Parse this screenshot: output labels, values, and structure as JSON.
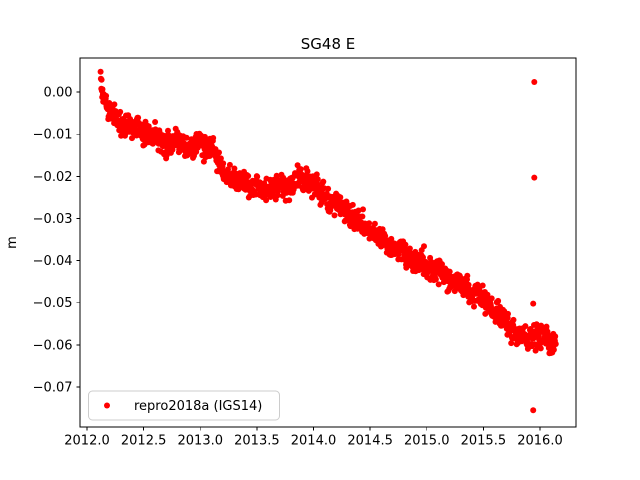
{
  "window": {
    "title": "SG48 E"
  },
  "chart_data": {
    "type": "scatter",
    "title": "SG48 E",
    "xlabel": "",
    "ylabel": "m",
    "grid": false,
    "xlim": [
      2011.938,
      2016.318
    ],
    "ylim": [
      -0.0795,
      0.0081
    ],
    "xticks": {
      "values": [
        2012.0,
        2012.5,
        2013.0,
        2013.5,
        2014.0,
        2014.5,
        2015.0,
        2015.5,
        2016.0
      ],
      "labels": [
        "2012.0",
        "2012.5",
        "2013.0",
        "2013.5",
        "2014.0",
        "2014.5",
        "2015.0",
        "2015.5",
        "2016.0"
      ]
    },
    "yticks": {
      "values": [
        0.0,
        -0.01,
        -0.02,
        -0.03,
        -0.04,
        -0.05,
        -0.06,
        -0.07
      ],
      "labels": [
        "0.00",
        "−0.01",
        "−0.02",
        "−0.03",
        "−0.04",
        "−0.05",
        "−0.06",
        "−0.07"
      ]
    },
    "legend": {
      "label": "repro2018a (IGS14)",
      "position": "lower left",
      "border_color": "#cccccc",
      "background": "#ffffff"
    },
    "marker": {
      "shape": "circle",
      "color": "#ff0000",
      "radius_px": 3
    },
    "axis_color": "#000000",
    "background_color": "#ffffff",
    "series": [
      {
        "name": "repro2018a (IGS14)",
        "color": "#ff0000",
        "t_start": 2012.12,
        "t_end": 2016.14,
        "n_points": 1420,
        "noise_sd_m": 0.0013,
        "trend": [
          [
            2012.12,
            0.0042
          ],
          [
            2012.135,
            0.0008
          ],
          [
            2012.165,
            -0.0028
          ],
          [
            2012.22,
            -0.0052
          ],
          [
            2012.3,
            -0.007
          ],
          [
            2012.42,
            -0.0086
          ],
          [
            2012.55,
            -0.0105
          ],
          [
            2012.72,
            -0.0116
          ],
          [
            2012.88,
            -0.013
          ],
          [
            2013.0,
            -0.0126
          ],
          [
            2013.08,
            -0.0122
          ],
          [
            2013.17,
            -0.0168
          ],
          [
            2013.28,
            -0.0205
          ],
          [
            2013.4,
            -0.022
          ],
          [
            2013.55,
            -0.0228
          ],
          [
            2013.7,
            -0.0226
          ],
          [
            2013.85,
            -0.0218
          ],
          [
            2013.97,
            -0.0215
          ],
          [
            2014.1,
            -0.0245
          ],
          [
            2014.25,
            -0.028
          ],
          [
            2014.4,
            -0.0308
          ],
          [
            2014.55,
            -0.0336
          ],
          [
            2014.7,
            -0.0372
          ],
          [
            2014.85,
            -0.039
          ],
          [
            2015.0,
            -0.041
          ],
          [
            2015.15,
            -0.0438
          ],
          [
            2015.3,
            -0.0458
          ],
          [
            2015.45,
            -0.0476
          ],
          [
            2015.6,
            -0.0518
          ],
          [
            2015.72,
            -0.0553
          ],
          [
            2015.8,
            -0.0576
          ],
          [
            2015.88,
            -0.0588
          ],
          [
            2015.95,
            -0.0574
          ],
          [
            2016.02,
            -0.0584
          ],
          [
            2016.09,
            -0.0597
          ],
          [
            2016.14,
            -0.0592
          ]
        ],
        "outliers": [
          [
            2015.95,
            0.0024
          ],
          [
            2015.95,
            -0.0203
          ],
          [
            2015.94,
            -0.0502
          ],
          [
            2015.94,
            -0.0755
          ]
        ]
      }
    ]
  }
}
